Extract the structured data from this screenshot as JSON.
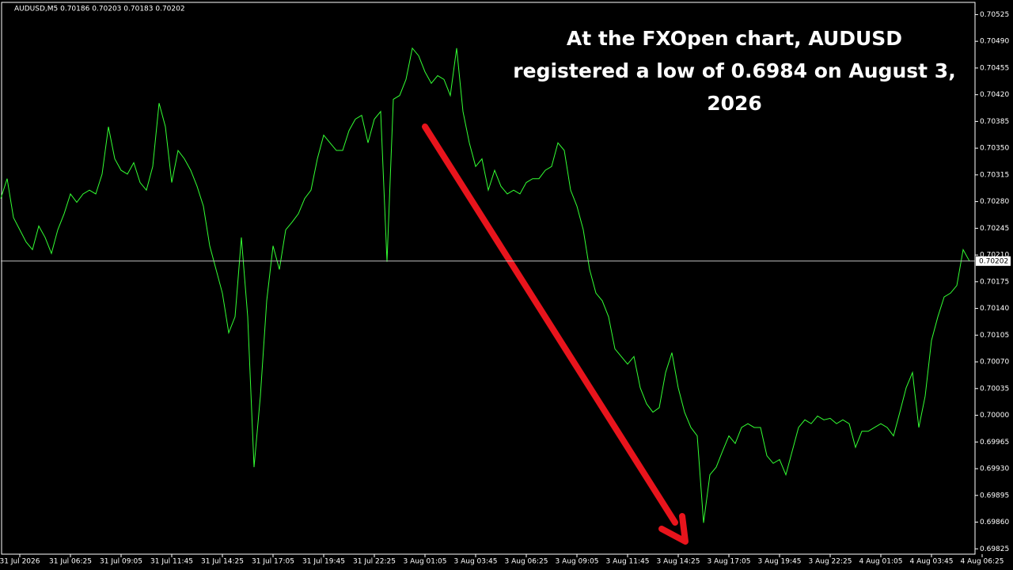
{
  "chart_data": {
    "type": "line",
    "title": "AUDUSD,M5 0.70186 0.70203 0.70183 0.70202",
    "annotation": [
      "At the FXOpen chart, AUDUSD",
      "registered a low of 0.6984 on August 3,",
      "2026"
    ],
    "categories": [
      null,
      null,
      null,
      "31 Jul 2026",
      null,
      null,
      null,
      null,
      null,
      null,
      null,
      "31 Jul 06:25",
      null,
      null,
      null,
      null,
      null,
      null,
      null,
      "31 Jul 09:05",
      null,
      null,
      null,
      null,
      null,
      null,
      null,
      "31 Jul 11:45",
      null,
      null,
      null,
      null,
      null,
      null,
      null,
      "31 Jul 14:25",
      null,
      null,
      null,
      null,
      null,
      null,
      null,
      "31 Jul 17:05",
      null,
      null,
      null,
      null,
      null,
      null,
      null,
      "31 Jul 19:45",
      null,
      null,
      null,
      null,
      null,
      null,
      null,
      "31 Jul 22:25",
      null,
      null,
      null,
      null,
      null,
      null,
      null,
      "3 Aug 01:05",
      null,
      null,
      null,
      null,
      null,
      null,
      null,
      "3 Aug 03:45",
      null,
      null,
      null,
      null,
      null,
      null,
      null,
      "3 Aug 06:25",
      null,
      null,
      null,
      null,
      null,
      null,
      null,
      "3 Aug 09:05",
      null,
      null,
      null,
      null,
      null,
      null,
      null,
      "3 Aug 11:45",
      null,
      null,
      null,
      null,
      null,
      null,
      null,
      "3 Aug 14:25",
      null,
      null,
      null,
      null,
      null,
      null,
      null,
      "3 Aug 17:05",
      null,
      null,
      null,
      null,
      null,
      null,
      null,
      "3 Aug 19:45",
      null,
      null,
      null,
      null,
      null,
      null,
      null,
      "3 Aug 22:25",
      null,
      null,
      null,
      null,
      null,
      null,
      null,
      "4 Aug 01:05",
      null,
      null,
      null,
      null,
      null,
      null,
      null,
      "4 Aug 03:45",
      null,
      null,
      null,
      null,
      null,
      null,
      null,
      "4 Aug 06:25"
    ],
    "series": [
      {
        "name": "AUDUSD,M5",
        "color": "#33ff33",
        "values": [
          0.70284,
          0.7031,
          0.70259,
          0.70243,
          0.70227,
          0.70217,
          0.70248,
          0.70233,
          0.70212,
          0.70243,
          0.70264,
          0.7029,
          0.70279,
          0.7029,
          0.70295,
          0.7029,
          0.70316,
          0.70378,
          0.70336,
          0.70321,
          0.70316,
          0.70331,
          0.70305,
          0.70295,
          0.70326,
          0.70409,
          0.70378,
          0.70305,
          0.70347,
          0.70336,
          0.70321,
          0.703,
          0.70274,
          0.70222,
          0.70191,
          0.7016,
          0.70108,
          0.70129,
          0.70233,
          0.70129,
          0.69932,
          0.70025,
          0.7015,
          0.70222,
          0.70191,
          0.70243,
          0.70253,
          0.70264,
          0.70284,
          0.70295,
          0.70336,
          0.70367,
          0.70357,
          0.70347,
          0.70347,
          0.70373,
          0.70388,
          0.70393,
          0.70357,
          0.70388,
          0.70398,
          0.70201,
          0.70414,
          0.70419,
          0.7044,
          0.70481,
          0.70471,
          0.7045,
          0.70435,
          0.70445,
          0.7044,
          0.70419,
          0.70481,
          0.70398,
          0.70357,
          0.70326,
          0.70336,
          0.70295,
          0.70321,
          0.703,
          0.7029,
          0.70295,
          0.7029,
          0.70305,
          0.7031,
          0.7031,
          0.70321,
          0.70326,
          0.70357,
          0.70347,
          0.70295,
          0.70274,
          0.70243,
          0.70191,
          0.7016,
          0.7015,
          0.70129,
          0.70087,
          0.70077,
          0.70067,
          0.70077,
          0.70036,
          0.70015,
          0.70004,
          0.7001,
          0.70056,
          0.70082,
          0.70036,
          0.70004,
          0.69984,
          0.69973,
          0.69859,
          0.69922,
          0.69932,
          0.69953,
          0.69973,
          0.69963,
          0.69984,
          0.69989,
          0.69984,
          0.69984,
          0.69947,
          0.69937,
          0.69942,
          0.69922,
          0.69953,
          0.69984,
          0.69994,
          0.69989,
          0.69999,
          0.69994,
          0.69996,
          0.69989,
          0.69994,
          0.69989,
          0.69958,
          0.69979,
          0.69979,
          0.69984,
          0.69989,
          0.69984,
          0.69973,
          0.70004,
          0.70036,
          0.70056,
          0.69984,
          0.70025,
          0.70098,
          0.70129,
          0.70155,
          0.7016,
          0.7017,
          0.70217,
          0.70202,
          null,
          null
        ]
      }
    ],
    "ylim": [
      0.69818,
      0.70541
    ],
    "yticks": [
      {
        "value": 0.70525,
        "label": "0.70525"
      },
      {
        "value": 0.7049,
        "label": "0.70490"
      },
      {
        "value": 0.70455,
        "label": "0.70455"
      },
      {
        "value": 0.7042,
        "label": "0.70420"
      },
      {
        "value": 0.70385,
        "label": "0.70385"
      },
      {
        "value": 0.7035,
        "label": "0.70350"
      },
      {
        "value": 0.70315,
        "label": "0.70315"
      },
      {
        "value": 0.7028,
        "label": "0.70280"
      },
      {
        "value": 0.70245,
        "label": "0.70245"
      },
      {
        "value": 0.7021,
        "label": "0.70210"
      },
      {
        "value": 0.70175,
        "label": "0.70175"
      },
      {
        "value": 0.7014,
        "label": "0.70140"
      },
      {
        "value": 0.70105,
        "label": "0.70105"
      },
      {
        "value": 0.7007,
        "label": "0.70070"
      },
      {
        "value": 0.70035,
        "label": "0.70035"
      },
      {
        "value": 0.7,
        "label": "0.70000"
      },
      {
        "value": 0.69965,
        "label": "0.69965"
      },
      {
        "value": 0.6993,
        "label": "0.69930"
      },
      {
        "value": 0.69895,
        "label": "0.69895"
      },
      {
        "value": 0.6986,
        "label": "0.69860"
      },
      {
        "value": 0.69825,
        "label": "0.69825"
      }
    ],
    "price_line": {
      "value": 0.70202,
      "label": "0.70202"
    },
    "grid": false
  }
}
